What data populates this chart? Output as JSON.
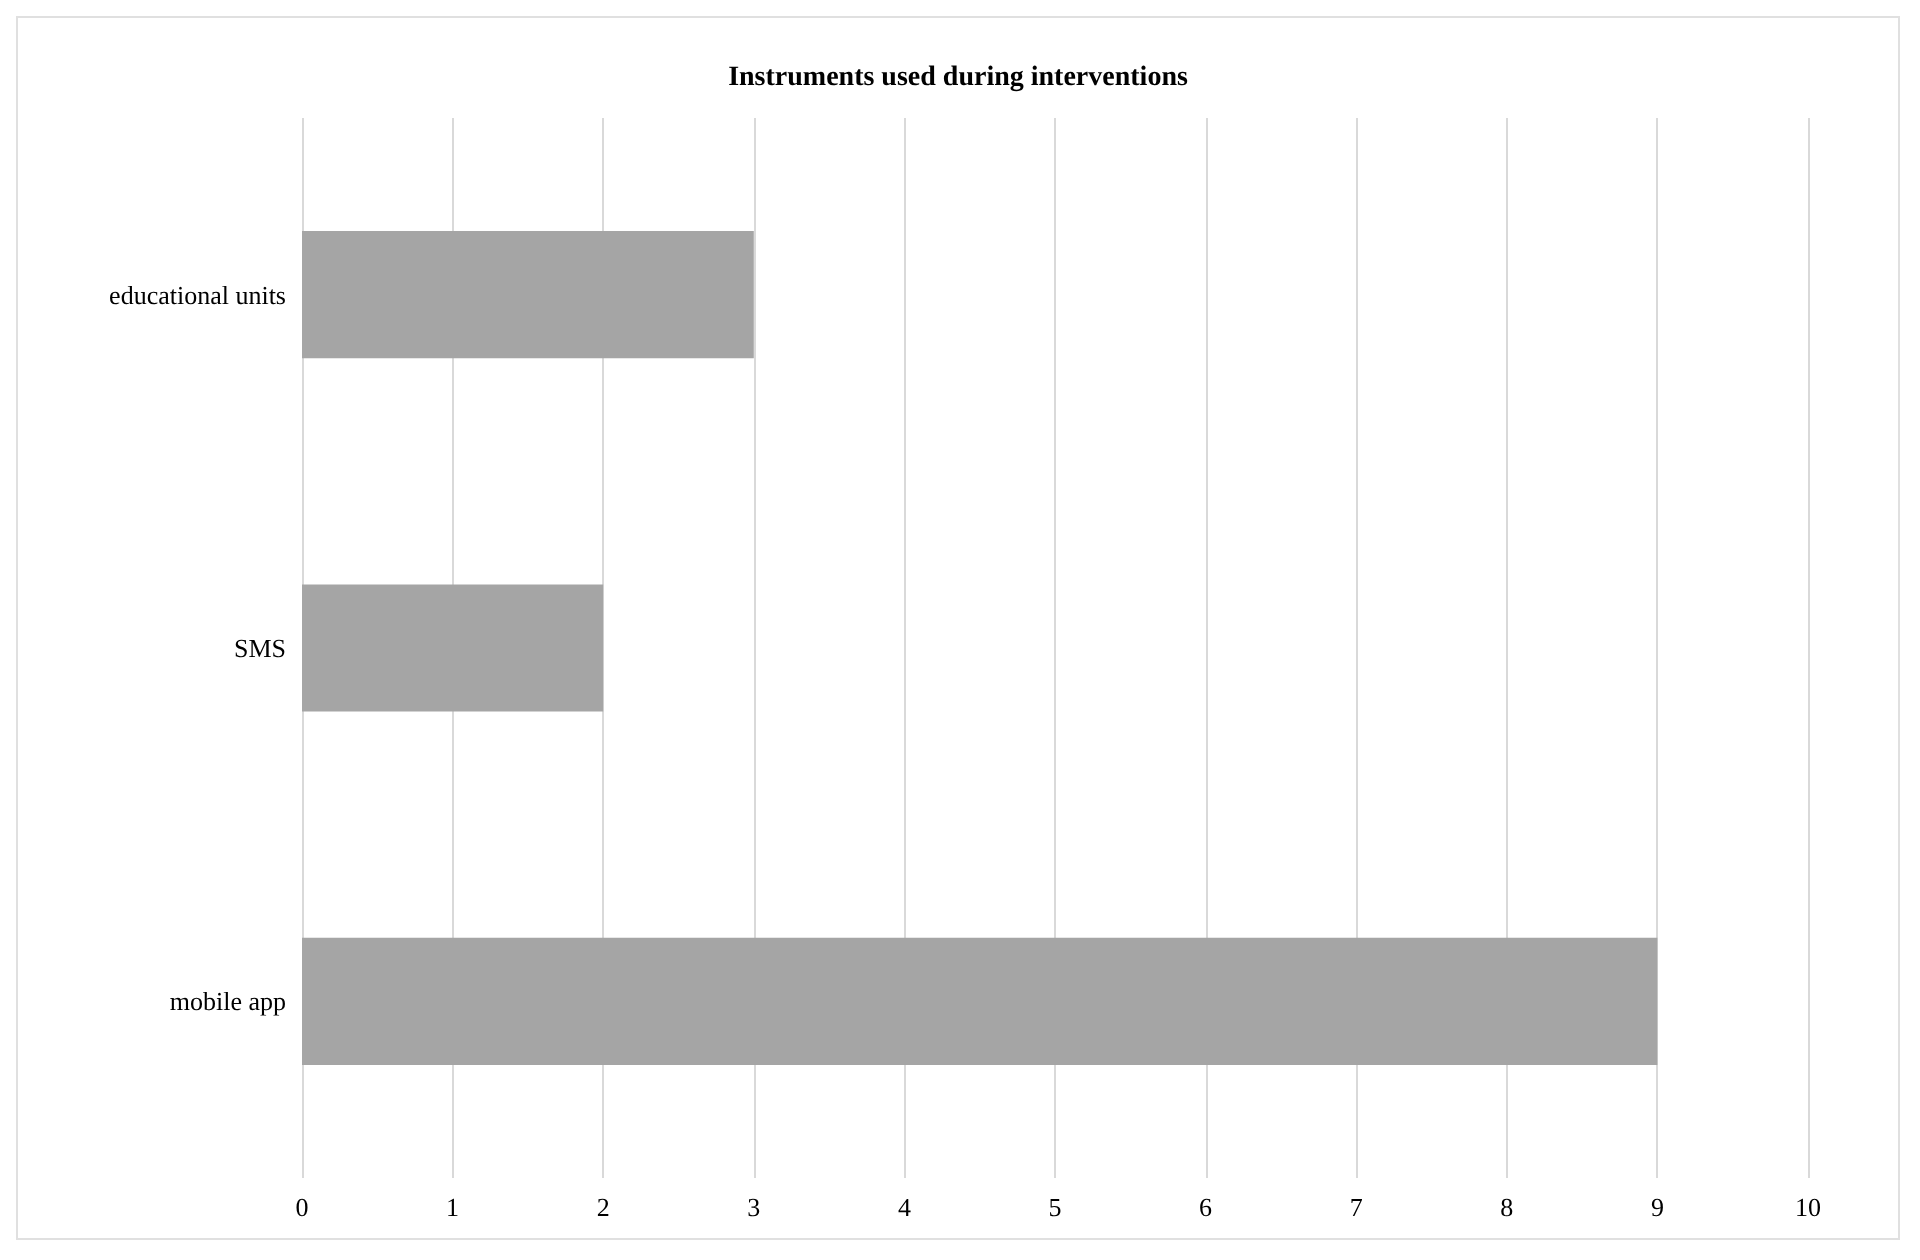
{
  "chart_data": {
    "type": "bar",
    "title": "Instruments used during interventions",
    "orientation": "horizontal",
    "categories": [
      "educational units",
      "SMS",
      "mobile app"
    ],
    "values": [
      3,
      2,
      9
    ],
    "color": "#a5a5a5",
    "xlim": [
      0,
      10
    ],
    "xticks": [
      0,
      1,
      2,
      3,
      4,
      5,
      6,
      7,
      8,
      9,
      10
    ],
    "grid": "x"
  }
}
